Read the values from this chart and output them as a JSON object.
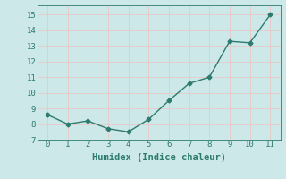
{
  "x": [
    0,
    1,
    2,
    3,
    4,
    5,
    6,
    7,
    8,
    9,
    10,
    11
  ],
  "y": [
    8.6,
    8.0,
    8.2,
    7.7,
    7.5,
    8.3,
    9.5,
    10.6,
    11.0,
    13.3,
    13.2,
    15.0
  ],
  "line_color": "#2d7a6e",
  "marker": "D",
  "marker_size": 2.5,
  "line_width": 1.0,
  "xlabel": "Humidex (Indice chaleur)",
  "xlim": [
    -0.5,
    11.5
  ],
  "ylim": [
    7.0,
    15.6
  ],
  "xticks": [
    0,
    1,
    2,
    3,
    4,
    5,
    6,
    7,
    8,
    9,
    10,
    11
  ],
  "yticks": [
    7,
    8,
    9,
    10,
    11,
    12,
    13,
    14,
    15
  ],
  "background_color": "#cde8e8",
  "grid_color": "#e8c8c8",
  "font_color": "#2d7a6e",
  "xlabel_fontsize": 7.5,
  "tick_fontsize": 6.5
}
